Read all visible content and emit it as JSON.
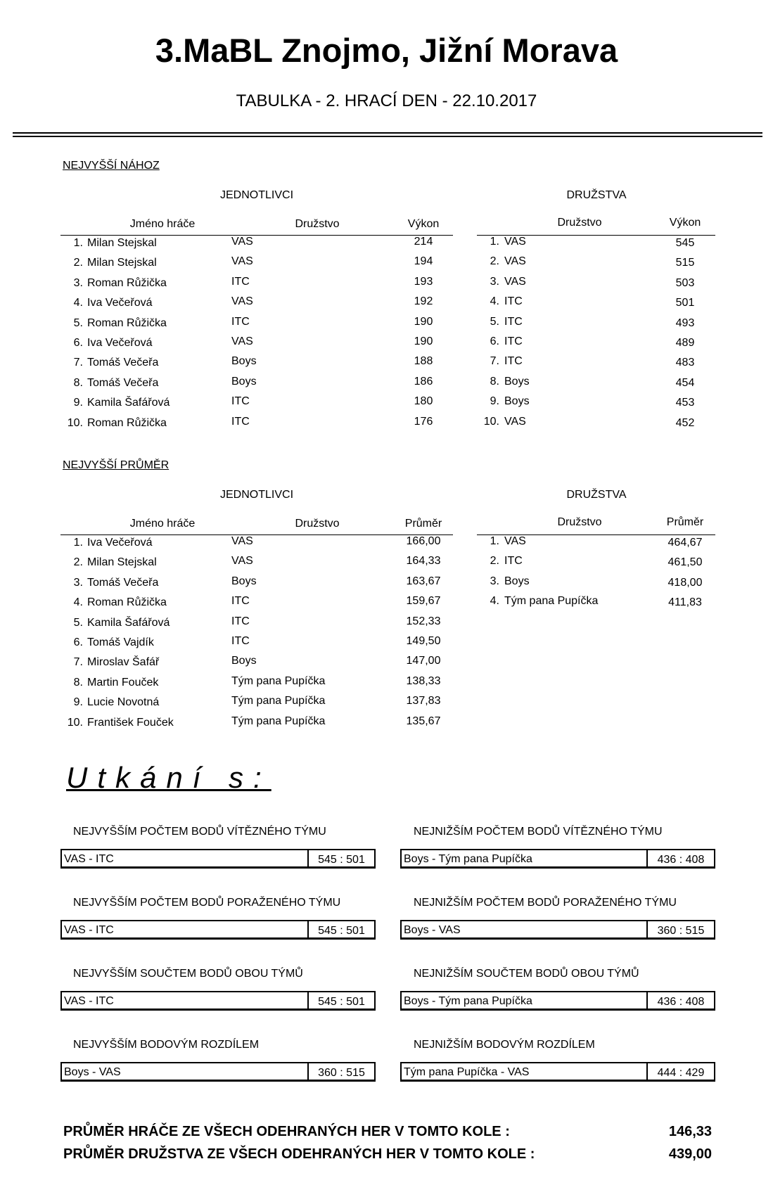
{
  "header": {
    "title": "3.MaBL Znojmo, Jižní Morava",
    "subtitle": "TABULKA - 2. HRACÍ DEN - 22.10.2017"
  },
  "sections": [
    {
      "title": "NEJVYŠŠÍ NÁHOZ",
      "individuals": {
        "label": "JEDNOTLIVCI",
        "columns": [
          "Jméno hráče",
          "Družstvo",
          "Výkon"
        ],
        "rows": [
          [
            "1.",
            "Milan Stejskal",
            "VAS",
            "214"
          ],
          [
            "2.",
            "Milan Stejskal",
            "VAS",
            "194"
          ],
          [
            "3.",
            "Roman Růžička",
            "ITC",
            "193"
          ],
          [
            "4.",
            "Iva Večeřová",
            "VAS",
            "192"
          ],
          [
            "5.",
            "Roman Růžička",
            "ITC",
            "190"
          ],
          [
            "6.",
            "Iva Večeřová",
            "VAS",
            "190"
          ],
          [
            "7.",
            "Tomáš Večeřa",
            "Boys",
            "188"
          ],
          [
            "8.",
            "Tomáš Večeřa",
            "Boys",
            "186"
          ],
          [
            "9.",
            "Kamila Šafářová",
            "ITC",
            "180"
          ],
          [
            "10.",
            "Roman Růžička",
            "ITC",
            "176"
          ]
        ]
      },
      "teams": {
        "label": "DRUŽSTVA",
        "columns": [
          "Družstvo",
          "Výkon"
        ],
        "rows": [
          [
            "1.",
            "VAS",
            "545"
          ],
          [
            "2.",
            "VAS",
            "515"
          ],
          [
            "3.",
            "VAS",
            "503"
          ],
          [
            "4.",
            "ITC",
            "501"
          ],
          [
            "5.",
            "ITC",
            "493"
          ],
          [
            "6.",
            "ITC",
            "489"
          ],
          [
            "7.",
            "ITC",
            "483"
          ],
          [
            "8.",
            "Boys",
            "454"
          ],
          [
            "9.",
            "Boys",
            "453"
          ],
          [
            "10.",
            "VAS",
            "452"
          ]
        ]
      }
    },
    {
      "title": "NEJVYŠŠÍ PRŮMĚR",
      "individuals": {
        "label": "JEDNOTLIVCI",
        "columns": [
          "Jméno hráče",
          "Družstvo",
          "Průměr"
        ],
        "rows": [
          [
            "1.",
            "Iva Večeřová",
            "VAS",
            "166,00"
          ],
          [
            "2.",
            "Milan Stejskal",
            "VAS",
            "164,33"
          ],
          [
            "3.",
            "Tomáš Večeřa",
            "Boys",
            "163,67"
          ],
          [
            "4.",
            "Roman Růžička",
            "ITC",
            "159,67"
          ],
          [
            "5.",
            "Kamila Šafářová",
            "ITC",
            "152,33"
          ],
          [
            "6.",
            "Tomáš Vajdík",
            "ITC",
            "149,50"
          ],
          [
            "7.",
            "Miroslav Šafář",
            "Boys",
            "147,00"
          ],
          [
            "8.",
            "Martin Fouček",
            "Tým pana Pupíčka",
            "138,33"
          ],
          [
            "9.",
            "Lucie Novotná",
            "Tým pana Pupíčka",
            "137,83"
          ],
          [
            "10.",
            "František Fouček",
            "Tým pana Pupíčka",
            "135,67"
          ]
        ]
      },
      "teams": {
        "label": "DRUŽSTVA",
        "columns": [
          "Družstvo",
          "Průměr"
        ],
        "rows": [
          [
            "1.",
            "VAS",
            "464,67"
          ],
          [
            "2.",
            "ITC",
            "461,50"
          ],
          [
            "3.",
            "Boys",
            "418,00"
          ],
          [
            "4.",
            "Tým pana Pupíčka",
            "411,83"
          ]
        ]
      }
    }
  ],
  "matches": {
    "title": "Utkání s:",
    "items": [
      {
        "label": "NEJVYŠŠÍM POČTEM BODŮ VÍTĚZNÉHO TÝMU",
        "match": "VAS - ITC",
        "score": "545 : 501"
      },
      {
        "label": "NEJNIŽŠÍM POČTEM BODŮ VÍTĚZNÉHO TÝMU",
        "match": "Boys - Tým pana Pupíčka",
        "score": "436 : 408"
      },
      {
        "label": "NEJVYŠŠÍM POČTEM BODŮ PORAŽENÉHO TÝMU",
        "match": "VAS - ITC",
        "score": "545 : 501"
      },
      {
        "label": "NEJNIŽŠÍM POČTEM BODŮ PORAŽENÉHO TÝMU",
        "match": "Boys - VAS",
        "score": "360 : 515"
      },
      {
        "label": "NEJVYŠŠÍM SOUČTEM BODŮ OBOU TÝMŮ",
        "match": "VAS - ITC",
        "score": "545 : 501"
      },
      {
        "label": "NEJNIŽŠÍM SOUČTEM BODŮ OBOU TÝMŮ",
        "match": "Boys - Tým pana Pupíčka",
        "score": "436 : 408"
      },
      {
        "label": "NEJVYŠŠÍM BODOVÝM ROZDÍLEM",
        "match": "Boys - VAS",
        "score": "360 : 515"
      },
      {
        "label": "NEJNIŽŠÍM BODOVÝM ROZDÍLEM",
        "match": "Tým pana Pupíčka - VAS",
        "score": "444 : 429"
      }
    ]
  },
  "summary": [
    {
      "label": "PRŮMĚR HRÁČE ZE VŠECH ODEHRANÝCH HER V TOMTO KOLE :",
      "value": "146,33"
    },
    {
      "label": "PRŮMĚR DRUŽSTVA ZE VŠECH ODEHRANÝCH HER V TOMTO KOLE :",
      "value": "439,00"
    }
  ]
}
